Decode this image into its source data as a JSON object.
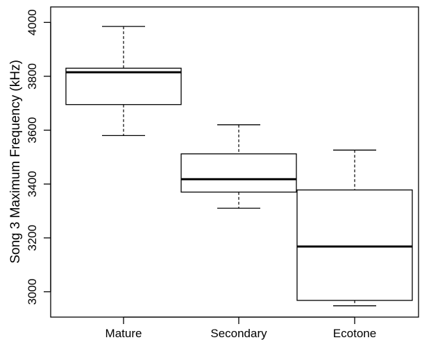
{
  "chart_data": {
    "type": "box",
    "title": "",
    "xlabel": "",
    "ylabel": "Song 3 Maximum Frequency (kHz)",
    "categories": [
      "Mature",
      "Secondary",
      "Ecotone"
    ],
    "boxes": [
      {
        "category": "Mature",
        "whisker_low": 3580,
        "q1": 3695,
        "median": 3815,
        "q3": 3830,
        "whisker_high": 3985
      },
      {
        "category": "Secondary",
        "whisker_low": 3310,
        "q1": 3370,
        "median": 3418,
        "q3": 3512,
        "whisker_high": 3620
      },
      {
        "category": "Ecotone",
        "whisker_low": 2948,
        "q1": 2968,
        "median": 3168,
        "q3": 3378,
        "whisker_high": 3526
      }
    ],
    "y_ticks": [
      3000,
      3200,
      3400,
      3600,
      3800,
      4000
    ],
    "ylim": [
      2910,
      4020
    ],
    "grid": false,
    "colors": {
      "stroke": "#000000",
      "box_fill": "#ffffff"
    }
  }
}
